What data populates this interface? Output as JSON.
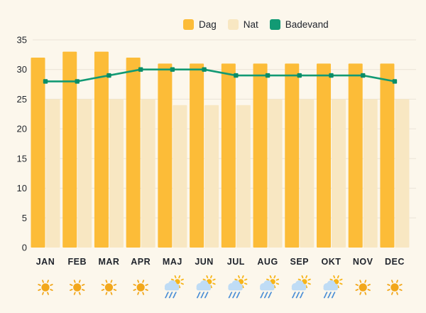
{
  "legend": {
    "items": [
      {
        "label": "Dag",
        "color": "#FCBC38"
      },
      {
        "label": "Nat",
        "color": "#F8E7C2"
      },
      {
        "label": "Badevand",
        "color": "#129A74"
      }
    ]
  },
  "chart_data": {
    "type": "bar",
    "subtype": "grouped bars with overlay line",
    "categories": [
      "JAN",
      "FEB",
      "MAR",
      "APR",
      "MAJ",
      "JUN",
      "JUL",
      "AUG",
      "SEP",
      "OKT",
      "NOV",
      "DEC"
    ],
    "series": [
      {
        "name": "Dag",
        "type": "bar",
        "color": "#FCBC38",
        "values": [
          32,
          33,
          33,
          32,
          31,
          31,
          31,
          31,
          31,
          31,
          31,
          31
        ]
      },
      {
        "name": "Nat",
        "type": "bar",
        "color": "#F8E7C2",
        "values": [
          25,
          25,
          25,
          25,
          24,
          24,
          24,
          25,
          25,
          25,
          25,
          25
        ]
      },
      {
        "name": "Badevand",
        "type": "line",
        "color": "#129A74",
        "marker_color": "#0A8D68",
        "values": [
          28,
          28,
          29,
          30,
          30,
          30,
          29,
          29,
          29,
          29,
          29,
          28
        ]
      }
    ],
    "title": "",
    "xlabel": "",
    "ylabel": "",
    "ylim": [
      0,
      35
    ],
    "yticks": [
      0,
      5,
      10,
      15,
      20,
      25,
      30,
      35
    ],
    "grid": "horizontal",
    "legend_position": "top",
    "weather_icons": [
      "sun",
      "sun",
      "sun",
      "sun",
      "rain-sun",
      "rain-sun",
      "rain-sun",
      "rain-sun",
      "rain-sun",
      "rain-sun",
      "sun",
      "sun"
    ],
    "icon_colors": {
      "sun": "#F2A71B",
      "small_sun": "#F7B418",
      "cloud": "#BFDCF5",
      "rain": "#4C8FD6"
    },
    "style": {
      "background": "#FCF7EC",
      "gridline": "#EAE3D7",
      "text": "#23272E"
    }
  }
}
